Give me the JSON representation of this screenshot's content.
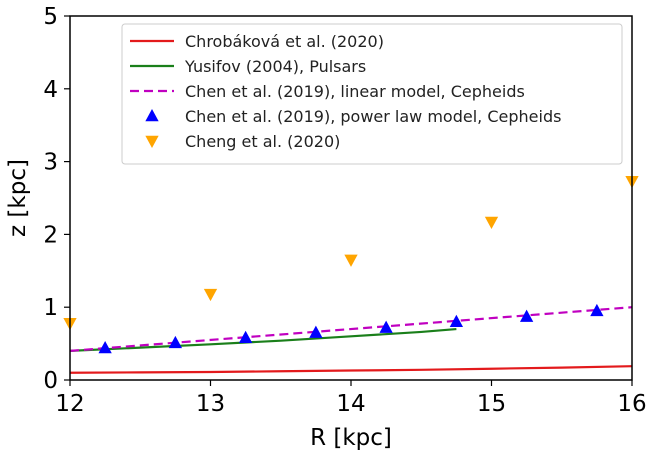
{
  "chart_data": {
    "type": "line",
    "xlabel": "R [kpc]",
    "ylabel": "z [kpc]",
    "xlim": [
      12,
      16
    ],
    "ylim": [
      0,
      5
    ],
    "xticks": [
      12,
      13,
      14,
      15,
      16
    ],
    "yticks": [
      0,
      1,
      2,
      3,
      4,
      5
    ],
    "grid": false,
    "legend_position": "top-right",
    "series": [
      {
        "name": "Chrobáková et al. (2020)",
        "kind": "line",
        "style": "solid",
        "color": "#e31a1c",
        "x": [
          12.0,
          12.5,
          13.0,
          13.5,
          14.0,
          14.5,
          15.0,
          15.5,
          16.0
        ],
        "y": [
          0.1,
          0.105,
          0.11,
          0.12,
          0.13,
          0.14,
          0.155,
          0.17,
          0.19
        ]
      },
      {
        "name": "Yusifov (2004), Pulsars",
        "kind": "line",
        "style": "solid",
        "color": "#1a7f1a",
        "x": [
          12.0,
          12.5,
          13.0,
          13.5,
          14.0,
          14.5,
          14.75
        ],
        "y": [
          0.4,
          0.445,
          0.49,
          0.54,
          0.6,
          0.66,
          0.7
        ]
      },
      {
        "name": "Chen et al. (2019), linear model, Cepheids",
        "kind": "line",
        "style": "dashed",
        "color": "#c000c0",
        "x": [
          12.0,
          16.0
        ],
        "y": [
          0.4,
          1.0
        ]
      },
      {
        "name": "Chen et al. (2019), power law model, Cepheids",
        "kind": "marker",
        "marker": "triangle-up",
        "color": "#0000ff",
        "x": [
          12.25,
          12.75,
          13.25,
          13.75,
          14.25,
          14.75,
          15.25,
          15.75
        ],
        "y": [
          0.44,
          0.51,
          0.58,
          0.65,
          0.72,
          0.8,
          0.87,
          0.95
        ]
      },
      {
        "name": "Cheng et al. (2020)",
        "kind": "marker",
        "marker": "triangle-down",
        "color": "#ffa500",
        "x": [
          12.0,
          13.0,
          14.0,
          15.0,
          16.0
        ],
        "y": [
          0.78,
          1.18,
          1.65,
          2.17,
          2.73
        ]
      }
    ]
  }
}
